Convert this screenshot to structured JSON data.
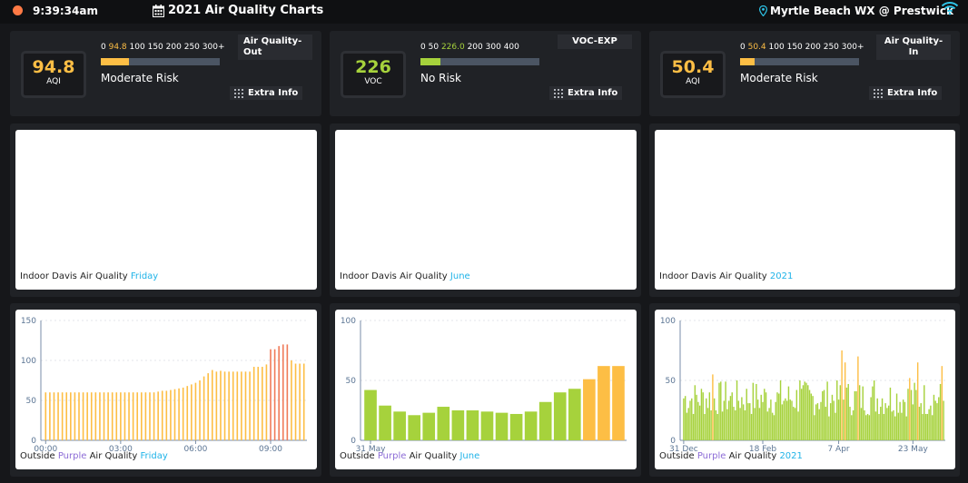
{
  "topbar": {
    "time": "9:39:34am",
    "title": "2021 Air Quality Charts",
    "location": "Myrtle Beach WX @ Prestwick"
  },
  "gauges": [
    {
      "value": "94.8",
      "unit": "AQI",
      "color": "#fdbe45",
      "scale": [
        "0",
        "94.8",
        "100",
        "150",
        "200",
        "250",
        "300+"
      ],
      "bar_fraction": 0.24,
      "bar_color": "#fdbe45",
      "risk": "Moderate Risk",
      "tag": "Air Quality-Out",
      "extra": "Extra Info"
    },
    {
      "value": "226",
      "unit": "VOC",
      "color": "#a6d23c",
      "scale": [
        "0",
        "50",
        "226.0",
        "200",
        "300",
        "400"
      ],
      "bar_fraction": 0.17,
      "bar_color": "#a6d23c",
      "risk": "No Risk",
      "tag": "VOC-EXP",
      "extra": "Extra Info"
    },
    {
      "value": "50.4",
      "unit": "AQI",
      "color": "#fdbe45",
      "scale": [
        "0",
        "50.4",
        "100",
        "150",
        "200",
        "250",
        "300+"
      ],
      "bar_fraction": 0.12,
      "bar_color": "#fdbe45",
      "risk": "Moderate Risk",
      "tag": "Air Quality-In",
      "extra": "Extra Info"
    }
  ],
  "indoor_charts": [
    {
      "label": "Indoor Davis Air Quality",
      "period": "Friday"
    },
    {
      "label": "Indoor Davis Air Quality",
      "period": "June"
    },
    {
      "label": "Indoor Davis Air Quality",
      "period": "2021"
    }
  ],
  "outdoor_captions": [
    {
      "pre": "Outside",
      "purple": "Purple",
      "post": "Air Quality",
      "period": "Friday"
    },
    {
      "pre": "Outside",
      "purple": "Purple",
      "post": "Air Quality",
      "period": "June"
    },
    {
      "pre": "Outside",
      "purple": "Purple",
      "post": "Air Quality",
      "period": "2021"
    }
  ],
  "chart_data": [
    {
      "type": "bar",
      "title": "Outside Purple Air Quality Friday",
      "ylim": [
        0,
        150
      ],
      "yticks": [
        0,
        50,
        100,
        150
      ],
      "xtick_labels": [
        "00:00",
        "03:00",
        "06:00",
        "09:00"
      ],
      "xtick_index": [
        0,
        18,
        36,
        54
      ],
      "values": [
        60,
        60,
        60,
        60,
        60,
        60,
        60,
        60,
        60,
        60,
        60,
        60,
        60,
        60,
        60,
        60,
        60,
        60,
        60,
        60,
        60,
        60,
        60,
        60,
        60,
        60,
        60,
        61,
        62,
        62,
        63,
        64,
        65,
        66,
        68,
        70,
        72,
        75,
        80,
        84,
        88,
        86,
        87,
        86,
        86,
        86,
        86,
        86,
        86,
        86,
        92,
        92,
        92,
        95,
        114,
        114,
        118,
        120,
        120,
        100,
        96,
        96,
        96
      ],
      "thresholds": [
        [
          50,
          "#a6d23c"
        ],
        [
          100,
          "#fdbe45"
        ],
        [
          1000,
          "#f07a58"
        ]
      ]
    },
    {
      "type": "bar",
      "title": "Outside Purple Air Quality June",
      "ylim": [
        0,
        100
      ],
      "yticks": [
        0,
        50,
        100
      ],
      "xtick_labels": [
        "31 May"
      ],
      "xtick_index": [
        0
      ],
      "values": [
        42,
        29,
        24,
        21,
        23,
        28,
        25,
        25,
        24,
        23,
        22,
        24,
        32,
        40,
        43,
        51,
        62,
        62
      ],
      "thresholds": [
        [
          50,
          "#a6d23c"
        ],
        [
          1000,
          "#fdbe45"
        ]
      ]
    },
    {
      "type": "bar",
      "title": "Outside Purple Air Quality 2021",
      "ylim": [
        0,
        100
      ],
      "yticks": [
        0,
        50,
        100
      ],
      "xtick_labels": [
        "31 Dec",
        "18 Feb",
        "7 Apr",
        "23 May"
      ],
      "xtick_index": [
        0,
        49,
        96,
        142
      ],
      "seed": 7,
      "n": 162,
      "base": 30,
      "spread": 30,
      "peaks": [
        [
          98,
          75
        ],
        [
          100,
          65
        ],
        [
          108,
          70
        ],
        [
          140,
          52
        ],
        [
          145,
          65
        ],
        [
          160,
          62
        ],
        [
          18,
          55
        ],
        [
          60,
          50
        ],
        [
          72,
          50
        ],
        [
          118,
          50
        ]
      ],
      "thresholds": [
        [
          50,
          "#a6d23c"
        ],
        [
          1000,
          "#fdbe45"
        ]
      ]
    }
  ]
}
